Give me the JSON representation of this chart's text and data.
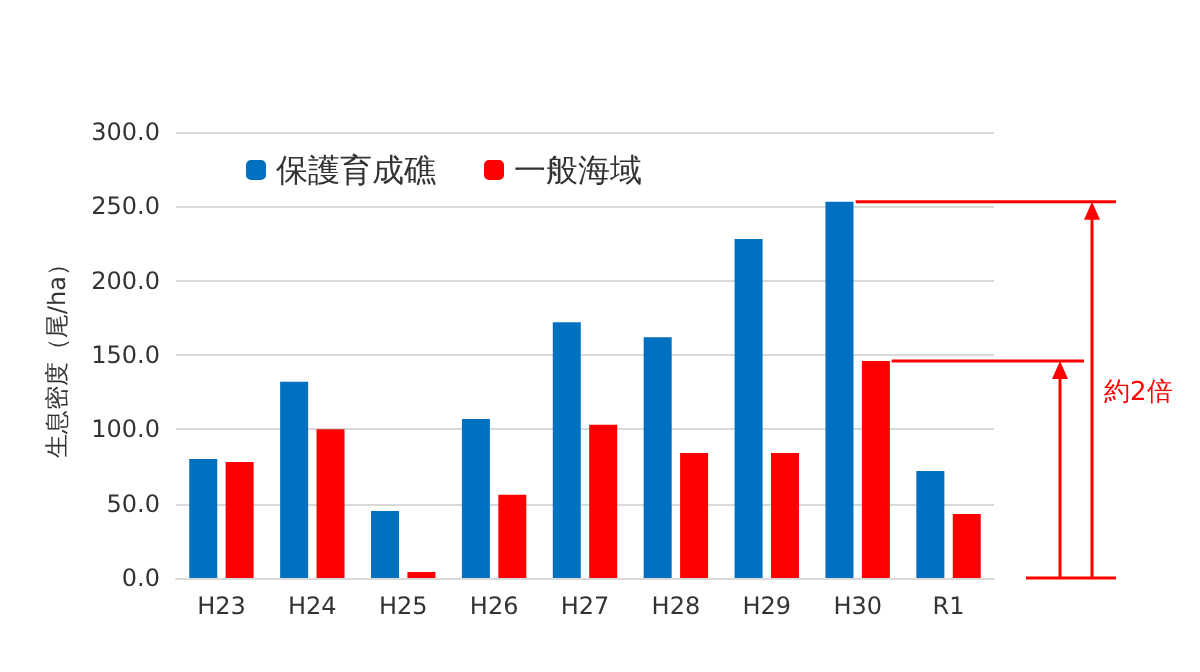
{
  "chart_data": {
    "type": "bar",
    "ylabel": "生息密度（尾/ha）",
    "categories": [
      "H23",
      "H24",
      "H25",
      "H26",
      "H27",
      "H28",
      "H29",
      "H30",
      "R1"
    ],
    "series": [
      {
        "name": "保護育成礁",
        "color": "#0070c0",
        "values": [
          80,
          132,
          45,
          107,
          172,
          162,
          228,
          253,
          72
        ]
      },
      {
        "name": "一般海域",
        "color": "#ff0000",
        "values": [
          78,
          100,
          4,
          56,
          103,
          84,
          84,
          146,
          43
        ]
      }
    ],
    "ylim": [
      0,
      300
    ],
    "yticks": [
      {
        "value": 0,
        "label": "0.0"
      },
      {
        "value": 50,
        "label": "50.0"
      },
      {
        "value": 100,
        "label": "100.0"
      },
      {
        "value": 150,
        "label": "150.0"
      },
      {
        "value": 200,
        "label": "200.0"
      },
      {
        "value": 250,
        "label": "250.0"
      },
      {
        "value": 300,
        "label": "300.0"
      }
    ],
    "ref_lines": [
      {
        "axis": "y",
        "value": 253,
        "color": "#ff0000"
      },
      {
        "axis": "y",
        "value": 146,
        "color": "#ff0000"
      }
    ],
    "grid": "y",
    "legend": "top",
    "annotations": [
      "約2倍"
    ]
  }
}
